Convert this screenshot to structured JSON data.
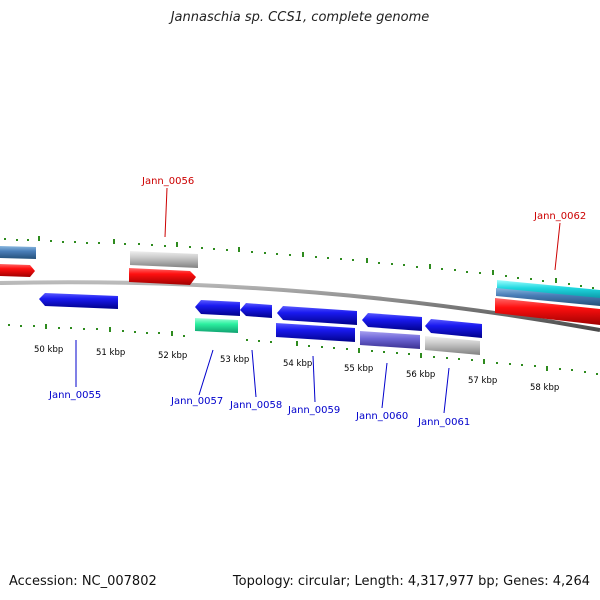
{
  "title": "Jannaschia sp. CCS1, complete genome",
  "footer": {
    "accession": "Accession: NC_007802",
    "summary": "Topology: circular; Length: 4,317,977 bp; Genes: 4,264"
  },
  "colors": {
    "backbone": "#8a8a8a",
    "tick": "#2e8b1e",
    "label_red": "#cc0000",
    "label_blue": "#0000cc"
  },
  "scale_labels": [
    "50 kbp",
    "51 kbp",
    "52 kbp",
    "53 kbp",
    "54 kbp",
    "55 kbp",
    "56 kbp",
    "57 kbp",
    "58 kbp"
  ],
  "gene_labels": [
    {
      "name": "Jann_0055",
      "strand": "minus"
    },
    {
      "name": "Jann_0056",
      "strand": "plus"
    },
    {
      "name": "Jann_0057",
      "strand": "minus"
    },
    {
      "name": "Jann_0058",
      "strand": "minus"
    },
    {
      "name": "Jann_0059",
      "strand": "minus"
    },
    {
      "name": "Jann_0060",
      "strand": "minus"
    },
    {
      "name": "Jann_0061",
      "strand": "minus"
    },
    {
      "name": "Jann_0062",
      "strand": "plus"
    }
  ]
}
